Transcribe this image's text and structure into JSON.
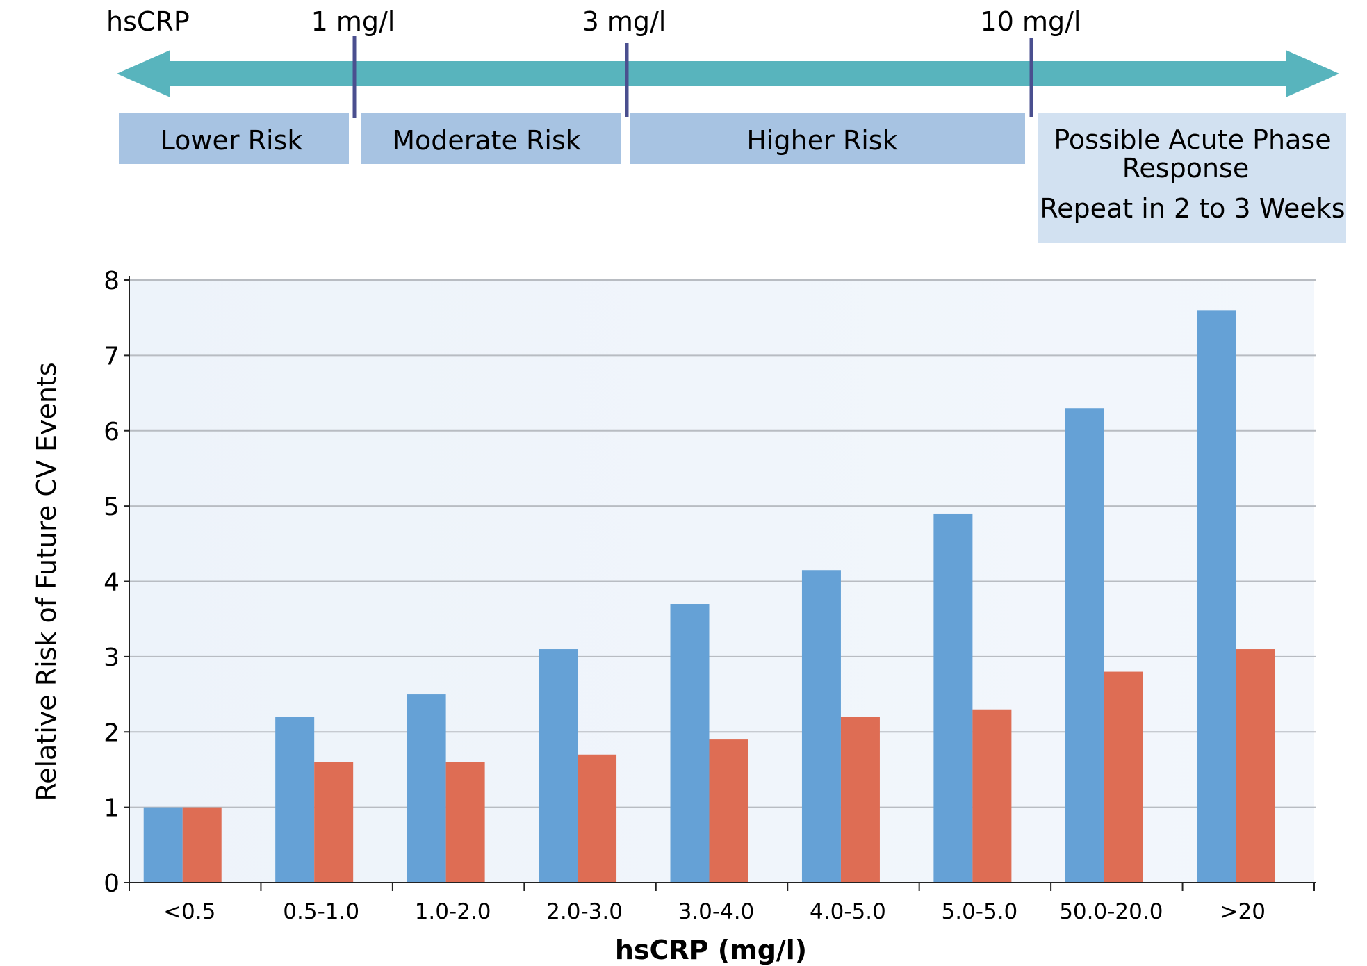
{
  "scale": {
    "title": "hsCRP",
    "markers": [
      "1 mg/l",
      "3 mg/l",
      "10 mg/l"
    ],
    "bands": [
      {
        "lines": [
          "Lower Risk"
        ]
      },
      {
        "lines": [
          "Moderate Risk"
        ]
      },
      {
        "lines": [
          "Higher Risk"
        ]
      },
      {
        "lines": [
          "Possible Acute Phase",
          "Response",
          "Repeat in 2 to 3 Weeks"
        ]
      }
    ]
  },
  "chart_data": {
    "type": "bar",
    "xlabel": "hsCRP (mg/l)",
    "ylabel": "Relative Risk of Future CV Events",
    "ylim": [
      0,
      8
    ],
    "yticks": [
      0,
      1,
      2,
      3,
      4,
      5,
      6,
      7,
      8
    ],
    "grid": true,
    "categories": [
      "<0.5",
      "0.5-1.0",
      "1.0-2.0",
      "2.0-3.0",
      "3.0-4.0",
      "4.0-5.0",
      "5.0-5.0",
      "50.0-20.0",
      ">20"
    ],
    "series": [
      {
        "values": [
          1.0,
          2.2,
          2.5,
          3.1,
          3.7,
          4.15,
          4.9,
          6.3,
          7.6
        ]
      },
      {
        "values": [
          1.0,
          1.6,
          1.6,
          1.7,
          1.9,
          2.2,
          2.3,
          2.8,
          3.1
        ]
      }
    ]
  },
  "colors": {
    "arrow": "#58b4bd",
    "marker": "#4a4f8f",
    "band": "#a7c3e2",
    "band_acute": "#d2e1f1",
    "plot_bg": "#eef4fb",
    "grid": "#b8bcc2",
    "series": [
      "#65a1d6",
      "#de6d54"
    ]
  }
}
